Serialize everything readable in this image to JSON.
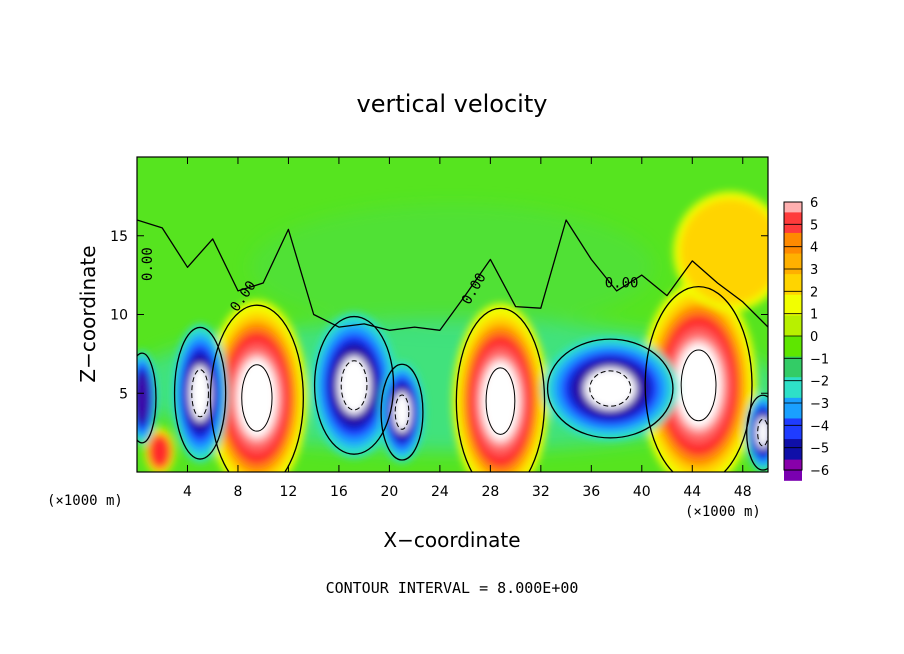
{
  "chart_data": {
    "type": "heatmap",
    "title": "vertical velocity",
    "xlabel": "X−coordinate",
    "ylabel": "Z−coordinate",
    "x_unit_left": "(×1000 m)",
    "x_unit_right": "(×1000 m)",
    "xlim": [
      0,
      50
    ],
    "ylim": [
      0,
      20
    ],
    "x_ticks": [
      "4",
      "8",
      "12",
      "16",
      "20",
      "24",
      "28",
      "32",
      "36",
      "40",
      "44",
      "48"
    ],
    "y_ticks": [
      "5",
      "10",
      "15"
    ],
    "x_tick_values": [
      4,
      8,
      12,
      16,
      20,
      24,
      28,
      32,
      36,
      40,
      44,
      48
    ],
    "y_tick_values": [
      5,
      10,
      15
    ],
    "colorbar": {
      "labels": [
        "6",
        "5",
        "4",
        "3",
        "2",
        "1",
        "0",
        "−1",
        "−2",
        "−3",
        "−4",
        "−5",
        "−6"
      ],
      "colors": [
        "#ff3b3b",
        "#ff8a00",
        "#ffb000",
        "#ffd400",
        "#f2ff00",
        "#b8f000",
        "#5ee600",
        "#33cc66",
        "#2ee0c8",
        "#1aa0ff",
        "#1f3cff",
        "#0f0fa8",
        "#7a00b0"
      ],
      "top_color": "#ffb0b0",
      "bottom_color": "#8800aa"
    },
    "contour_labels": [
      {
        "text": "0.00",
        "x": 1.2,
        "y": 13.2,
        "rotate": -90
      },
      {
        "text": "0.00",
        "x": 8.7,
        "y": 11.0,
        "rotate": -55
      },
      {
        "text": "0.00",
        "x": 27.0,
        "y": 11.5,
        "rotate": -60
      },
      {
        "text": "0.00",
        "x": 38.4,
        "y": 11.7,
        "rotate": 0
      }
    ],
    "background_color": "#56e41f",
    "cells": [
      {
        "x": 9.5,
        "z": 4.7,
        "rx": 4.0,
        "rz": 6.2,
        "sign": 1,
        "strength": 1.0,
        "white_core": true
      },
      {
        "x": 28.8,
        "z": 4.5,
        "rx": 3.8,
        "rz": 6.2,
        "sign": 1,
        "strength": 1.0,
        "white_core": true
      },
      {
        "x": 44.5,
        "z": 5.5,
        "rx": 4.6,
        "rz": 6.6,
        "sign": 1,
        "strength": 1.0,
        "white_core": true
      },
      {
        "x": 1.8,
        "z": 1.3,
        "rx": 1.2,
        "rz": 1.5,
        "sign": 1,
        "strength": 0.7,
        "white_core": false
      },
      {
        "x": 5.0,
        "z": 5.0,
        "rx": 2.2,
        "rz": 4.4,
        "sign": -1,
        "strength": 1.0,
        "white_core": true
      },
      {
        "x": 17.2,
        "z": 5.5,
        "rx": 3.4,
        "rz": 4.6,
        "sign": -1,
        "strength": 1.0,
        "white_core": true
      },
      {
        "x": 21.0,
        "z": 3.8,
        "rx": 1.8,
        "rz": 3.2,
        "sign": -1,
        "strength": 0.9,
        "white_core": true
      },
      {
        "x": 37.5,
        "z": 5.3,
        "rx": 5.4,
        "rz": 3.3,
        "sign": -1,
        "strength": 1.0,
        "white_core": true
      },
      {
        "x": 0.4,
        "z": 4.7,
        "rx": 1.2,
        "rz": 3.0,
        "sign": -1,
        "strength": 0.9,
        "white_core": false
      },
      {
        "x": 49.6,
        "z": 2.5,
        "rx": 1.4,
        "rz": 2.5,
        "sign": -1,
        "strength": 0.8,
        "white_core": true
      },
      {
        "x": 47.0,
        "z": 14.0,
        "rx": 4.5,
        "rz": 3.8,
        "sign": 1,
        "strength": 0.32,
        "white_core": false
      }
    ]
  },
  "footer_note": "CONTOUR INTERVAL = 8.000E+00"
}
